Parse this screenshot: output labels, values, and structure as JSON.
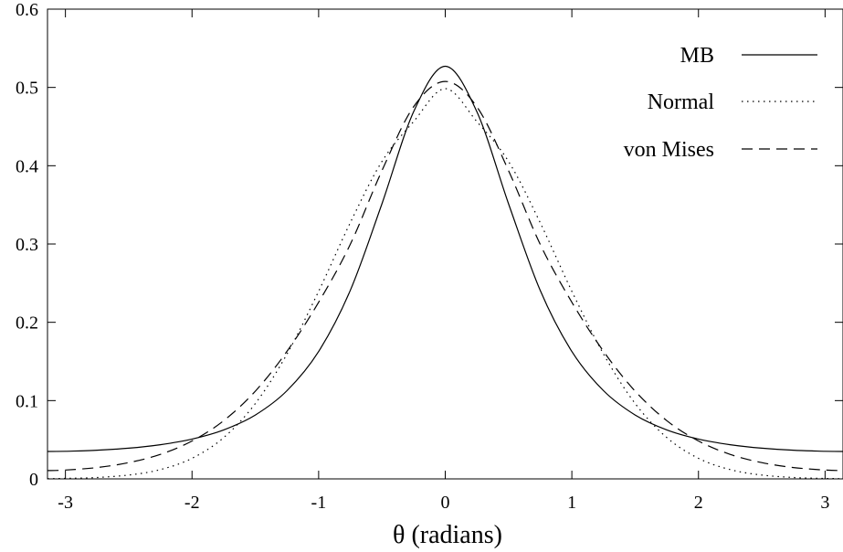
{
  "chart_data": {
    "type": "line",
    "xlabel": "θ (radians)",
    "ylabel": "",
    "xlim": [
      -3.14159,
      3.14159
    ],
    "ylim": [
      0,
      0.6
    ],
    "xticks": [
      -3,
      -2,
      -1,
      0,
      1,
      2,
      3
    ],
    "xtick_labels": [
      "-3",
      "-2",
      "-1",
      "0",
      "1",
      "2",
      "3"
    ],
    "yticks": [
      0,
      0.1,
      0.2,
      0.3,
      0.4,
      0.5,
      0.6
    ],
    "ytick_labels": [
      "0",
      "0.1",
      "0.2",
      "0.3",
      "0.4",
      "0.5",
      "0.6"
    ],
    "grid": false,
    "legend_position": "top-right",
    "x": [
      -3.14,
      -3.0,
      -2.75,
      -2.5,
      -2.25,
      -2.0,
      -1.75,
      -1.5,
      -1.25,
      -1.0,
      -0.75,
      -0.5,
      -0.25,
      0.0,
      0.25,
      0.5,
      0.75,
      1.0,
      1.25,
      1.5,
      1.75,
      2.0,
      2.25,
      2.5,
      2.75,
      3.0,
      3.14
    ],
    "series": [
      {
        "name": "MB",
        "style": "solid",
        "values": [
          0.035,
          0.0353,
          0.0366,
          0.0392,
          0.0437,
          0.0509,
          0.0626,
          0.0816,
          0.1127,
          0.1627,
          0.2407,
          0.3514,
          0.4688,
          0.527,
          0.4688,
          0.3514,
          0.2407,
          0.1627,
          0.1127,
          0.0816,
          0.0626,
          0.0509,
          0.0437,
          0.0392,
          0.0366,
          0.0353,
          0.035
        ]
      },
      {
        "name": "Normal",
        "style": "dotted",
        "values": [
          0.0003,
          0.0006,
          0.0018,
          0.0049,
          0.0119,
          0.0263,
          0.0528,
          0.0963,
          0.1594,
          0.2397,
          0.3272,
          0.4054,
          0.4563,
          0.4985,
          0.4563,
          0.4054,
          0.3272,
          0.2397,
          0.1594,
          0.0963,
          0.0528,
          0.0263,
          0.0119,
          0.0049,
          0.0018,
          0.0006,
          0.0003
        ]
      },
      {
        "name": "von Mises",
        "style": "dashed",
        "values": [
          0.0106,
          0.0113,
          0.0145,
          0.0208,
          0.0313,
          0.0484,
          0.0744,
          0.1121,
          0.1629,
          0.2256,
          0.2995,
          0.3937,
          0.4752,
          0.5077,
          0.4752,
          0.3937,
          0.2995,
          0.2256,
          0.1629,
          0.1121,
          0.0744,
          0.0484,
          0.0313,
          0.0208,
          0.0145,
          0.0113,
          0.0106
        ]
      }
    ]
  }
}
